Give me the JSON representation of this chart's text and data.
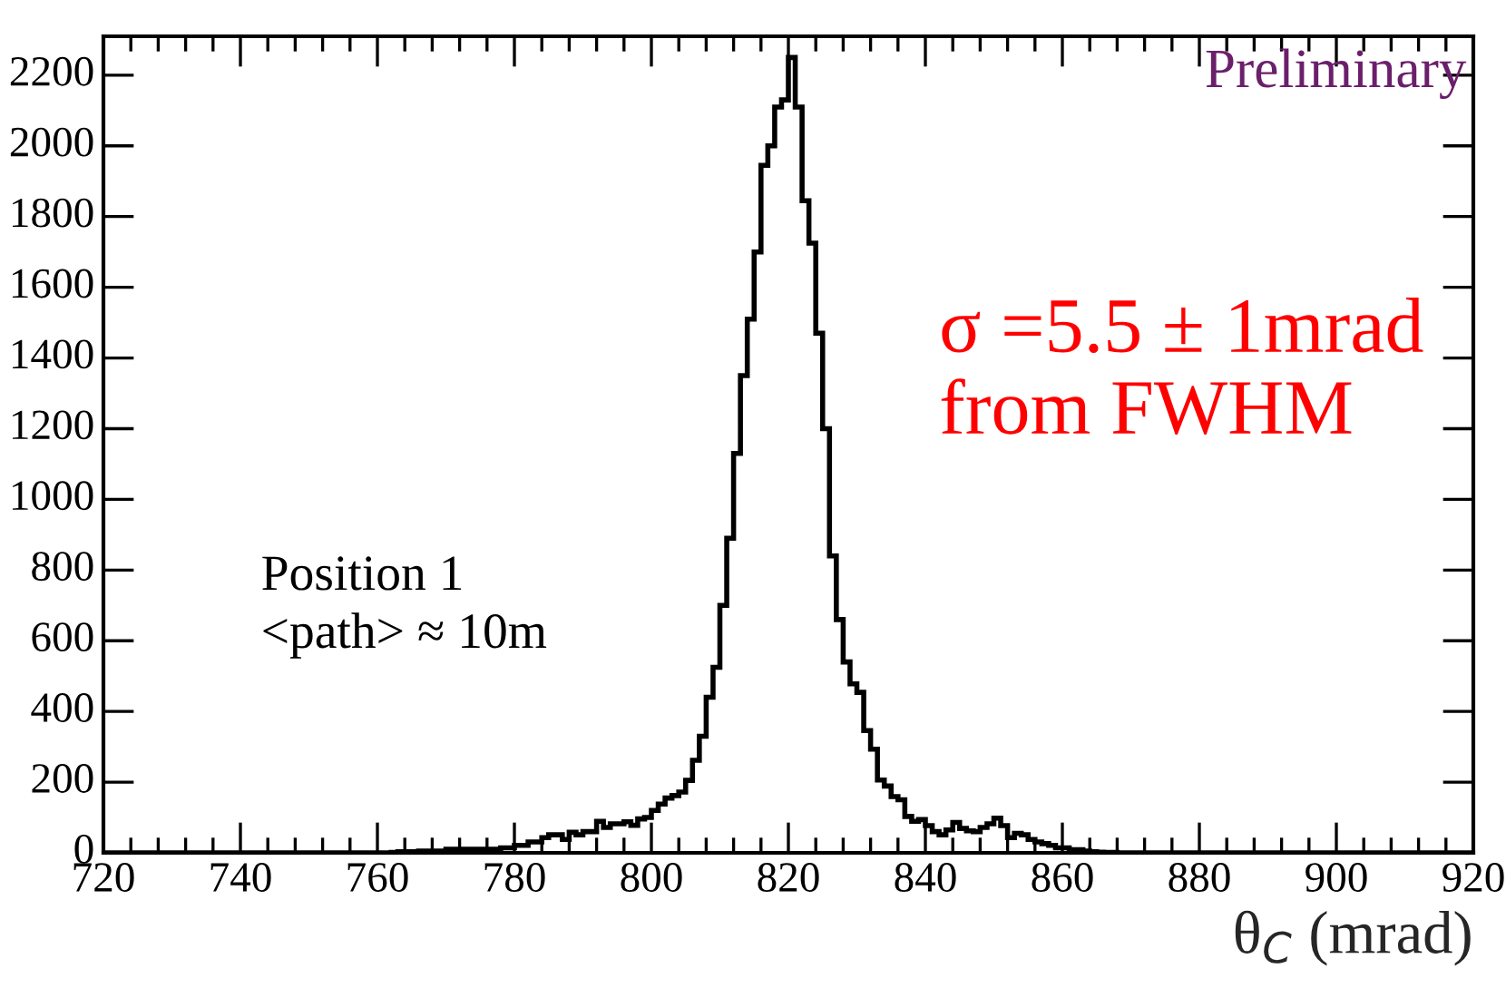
{
  "chart_data": {
    "type": "histogram",
    "xlabel": "θ$_{C}$ (mrad)",
    "annotations": [
      "Preliminary",
      "σ =5.5 ± 1mrad\nfrom FWHM",
      "Position 1\n<path> ≈ 10m"
    ],
    "bins": [
      720,
      762,
      763,
      764,
      765,
      766,
      767,
      768,
      769,
      770,
      771,
      772,
      773,
      774,
      775,
      776,
      777,
      778,
      779,
      780,
      781,
      782,
      783,
      784,
      785,
      786,
      787,
      788,
      789,
      790,
      791,
      792,
      793,
      794,
      795,
      796,
      797,
      798,
      799,
      800,
      801,
      802,
      803,
      804,
      805,
      806,
      807,
      808,
      809,
      810,
      811,
      812,
      813,
      814,
      815,
      816,
      817,
      818,
      819,
      820,
      821,
      822,
      823,
      824,
      825,
      826,
      827,
      828,
      829,
      830,
      831,
      832,
      833,
      834,
      835,
      836,
      837,
      838,
      839,
      840,
      841,
      842,
      843,
      844,
      845,
      846,
      847,
      848,
      849,
      850,
      851,
      852,
      853,
      854,
      855,
      856,
      857,
      858,
      859,
      860,
      861,
      862,
      863,
      864,
      865,
      866,
      867,
      868,
      869,
      920
    ],
    "values": [
      0,
      1,
      3,
      3,
      3,
      5,
      5,
      5,
      5,
      10,
      10,
      10,
      10,
      10,
      10,
      10,
      10,
      14,
      14,
      21,
      21,
      31,
      31,
      43,
      51,
      51,
      38,
      58,
      51,
      60,
      60,
      89,
      72,
      82,
      82,
      88,
      78,
      96,
      100,
      120,
      138,
      155,
      162,
      172,
      205,
      262,
      330,
      440,
      525,
      700,
      890,
      1130,
      1350,
      1510,
      1700,
      1945,
      2000,
      2110,
      2130,
      2250,
      2110,
      1845,
      1725,
      1470,
      1200,
      840,
      660,
      540,
      478,
      454,
      346,
      293,
      206,
      189,
      159,
      150,
      103,
      89,
      94,
      77,
      60,
      51,
      65,
      86,
      69,
      62,
      60,
      72,
      82,
      98,
      77,
      43,
      55,
      51,
      38,
      31,
      26,
      21,
      14,
      14,
      9,
      9,
      5,
      3,
      2,
      1,
      1,
      0,
      0
    ],
    "color": "#000000",
    "xlim": [
      720,
      920
    ],
    "ylim": [
      0,
      2310
    ],
    "xticks": [
      720,
      740,
      760,
      780,
      800,
      820,
      840,
      860,
      880,
      900,
      920
    ],
    "yticks": [
      0,
      200,
      400,
      600,
      800,
      1000,
      1200,
      1400,
      1600,
      1800,
      2000,
      2200
    ],
    "grid": false,
    "legend": false
  }
}
